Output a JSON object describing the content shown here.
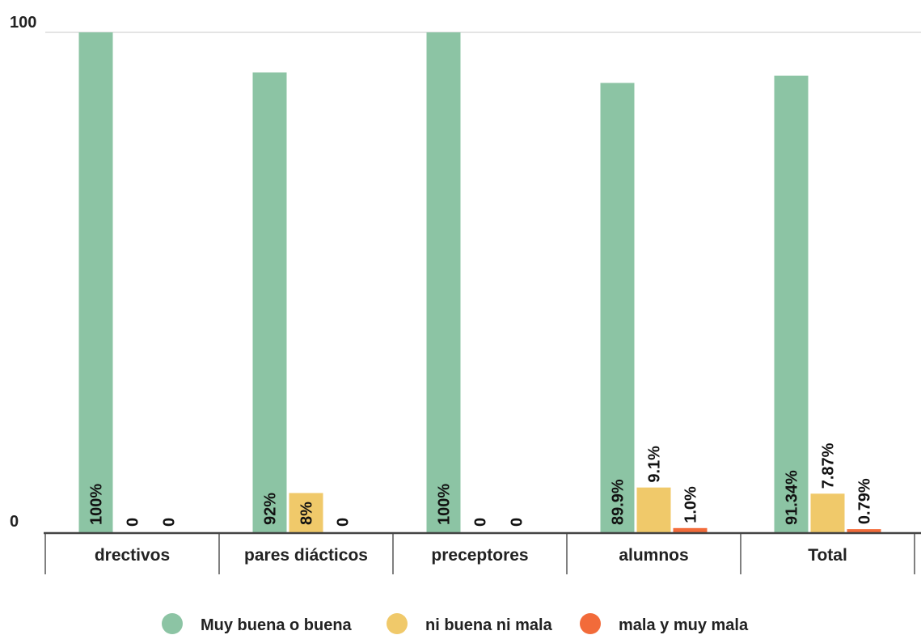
{
  "chart_data": {
    "type": "bar",
    "categories": [
      "drectivos",
      "pares diácticos",
      "preceptores",
      "alumnos",
      "Total"
    ],
    "series": [
      {
        "name": "Muy buena o buena",
        "color": "#8cc4a4",
        "values": [
          100,
          92,
          100,
          89.9,
          91.34
        ],
        "labels": [
          "100%",
          "92%",
          "100%",
          "89.9%",
          "91.34%"
        ]
      },
      {
        "name": "ni buena ni mala",
        "color": "#f0c96a",
        "values": [
          0,
          8,
          0,
          9.1,
          7.87
        ],
        "labels": [
          "0",
          "8%",
          "0",
          "9.1%",
          "7.87%"
        ]
      },
      {
        "name": "mala y muy mala",
        "color": "#f26b3a",
        "values": [
          0,
          0,
          0,
          1.0,
          0.79
        ],
        "labels": [
          "0",
          "0",
          "0",
          "1.0%",
          "0.79%"
        ]
      }
    ],
    "yticks": [
      {
        "value": 0,
        "label": "0"
      },
      {
        "value": 100,
        "label": "100"
      }
    ],
    "ylim": [
      0,
      100
    ],
    "legend_position": "bottom",
    "grid": true
  }
}
